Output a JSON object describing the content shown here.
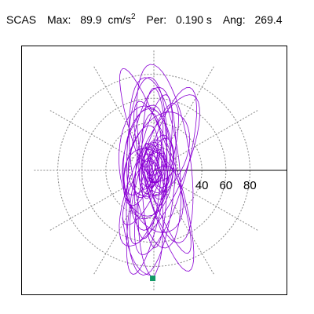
{
  "header": {
    "station": "SCAS",
    "max_label": "Max:",
    "max_value": "89.9",
    "max_unit_base": "cm/s",
    "max_unit_exp": "2",
    "per_label": "Per:",
    "per_value": "0.190 s",
    "ang_label": "Ang:",
    "ang_value": "269.4"
  },
  "colors": {
    "trace": "#8a00d4",
    "grid": "#888888",
    "axis": "#000000",
    "marker": "#119966"
  },
  "chart_data": {
    "type": "scatter",
    "subtype": "polar particle-motion plot",
    "rings": [
      20,
      40,
      60,
      80
    ],
    "ring_labels": [
      "40",
      "60",
      "80"
    ],
    "radial_spokes_deg": [
      0,
      30,
      60,
      90,
      120,
      150,
      180,
      210,
      240,
      270,
      300,
      330
    ],
    "max_radius": 100,
    "grid": true,
    "peak_marker": {
      "angle_deg": 269.4,
      "radius": 89.9
    },
    "trace_angle_deg": 269.4
  }
}
